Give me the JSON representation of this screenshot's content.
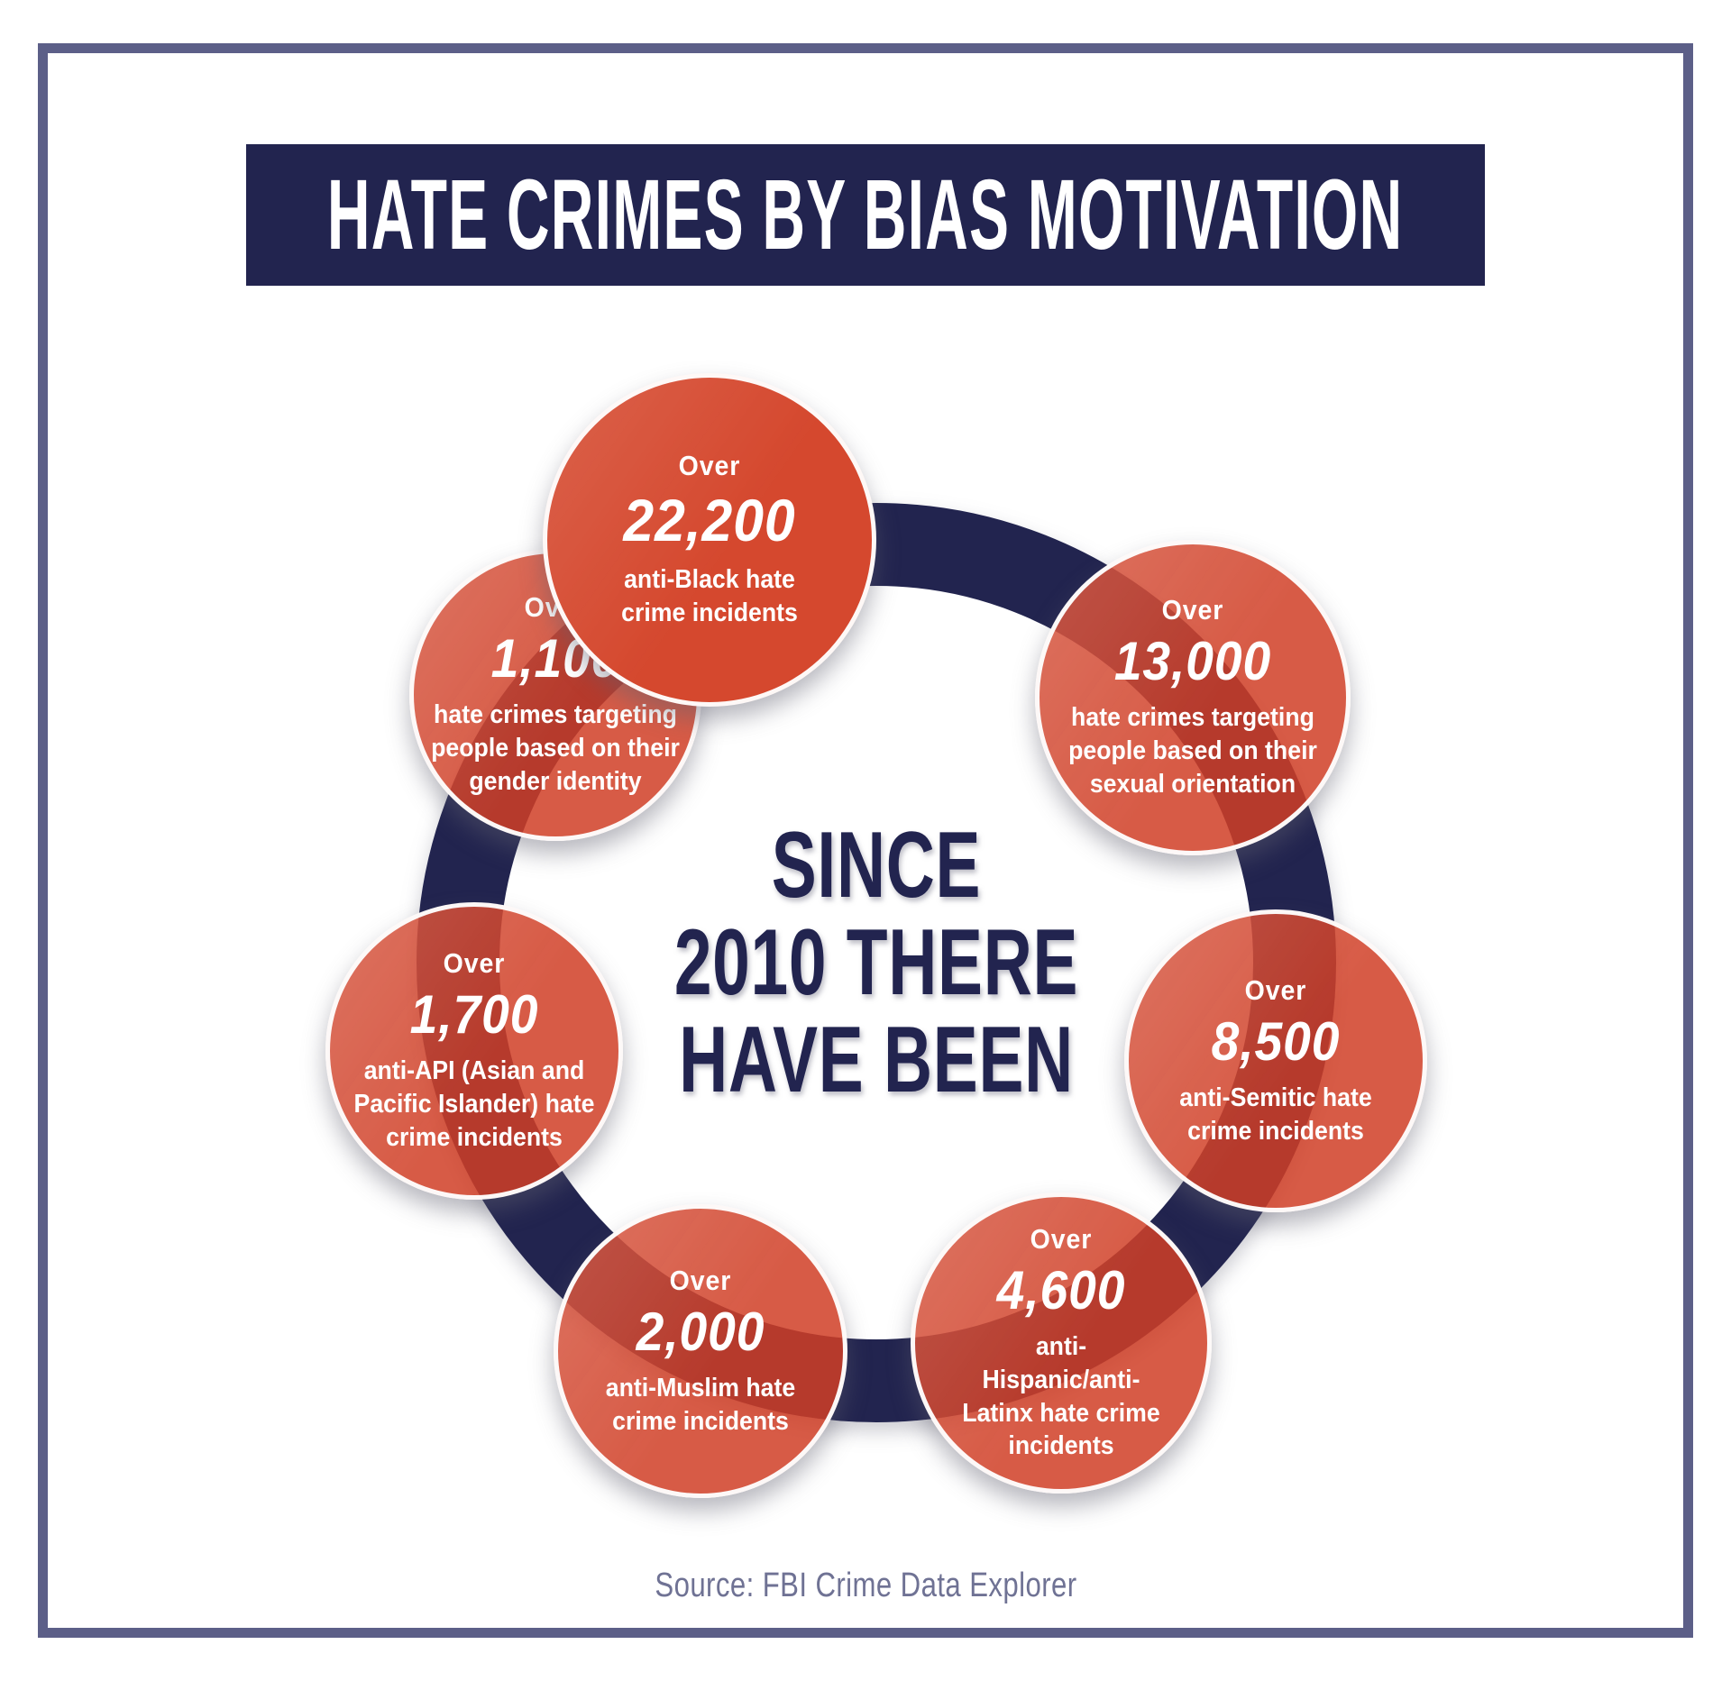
{
  "header": {
    "title": "HATE CRIMES BY BIAS MOTIVATION"
  },
  "center": {
    "line1": "SINCE",
    "line2": "2010 THERE",
    "line3": "HAVE BEEN"
  },
  "source": {
    "text": "Source: FBI Crime Data Explorer"
  },
  "colors": {
    "navy": "#22244F",
    "red": "#D5482E",
    "red_translucent": "rgba(208,62,38,0.85)",
    "frame_border": "#5C5F88",
    "source_text": "#6F7294",
    "text_white": "#FFFFFF"
  },
  "bubbles": [
    {
      "qualifier": "Over",
      "value": "22,200",
      "description": "anti-Black hate crime incidents",
      "position": "top"
    },
    {
      "qualifier": "Over",
      "value": "13,000",
      "description": "hate crimes targeting people based on their sexual orientation",
      "position": "top-right"
    },
    {
      "qualifier": "Over",
      "value": "8,500",
      "description": "anti-Semitic hate crime incidents",
      "position": "right"
    },
    {
      "qualifier": "Over",
      "value": "4,600",
      "description": "anti-Hispanic/anti-Latinx hate crime incidents",
      "position": "bottom-right"
    },
    {
      "qualifier": "Over",
      "value": "2,000",
      "description": "anti-Muslim hate crime incidents",
      "position": "bottom-left"
    },
    {
      "qualifier": "Over",
      "value": "1,700",
      "description": "anti-API (Asian and Pacific Islander) hate crime incidents",
      "position": "left"
    },
    {
      "qualifier": "Over",
      "value": "1,100",
      "description": "hate crimes targeting people based on their gender identity",
      "position": "top-left"
    }
  ]
}
